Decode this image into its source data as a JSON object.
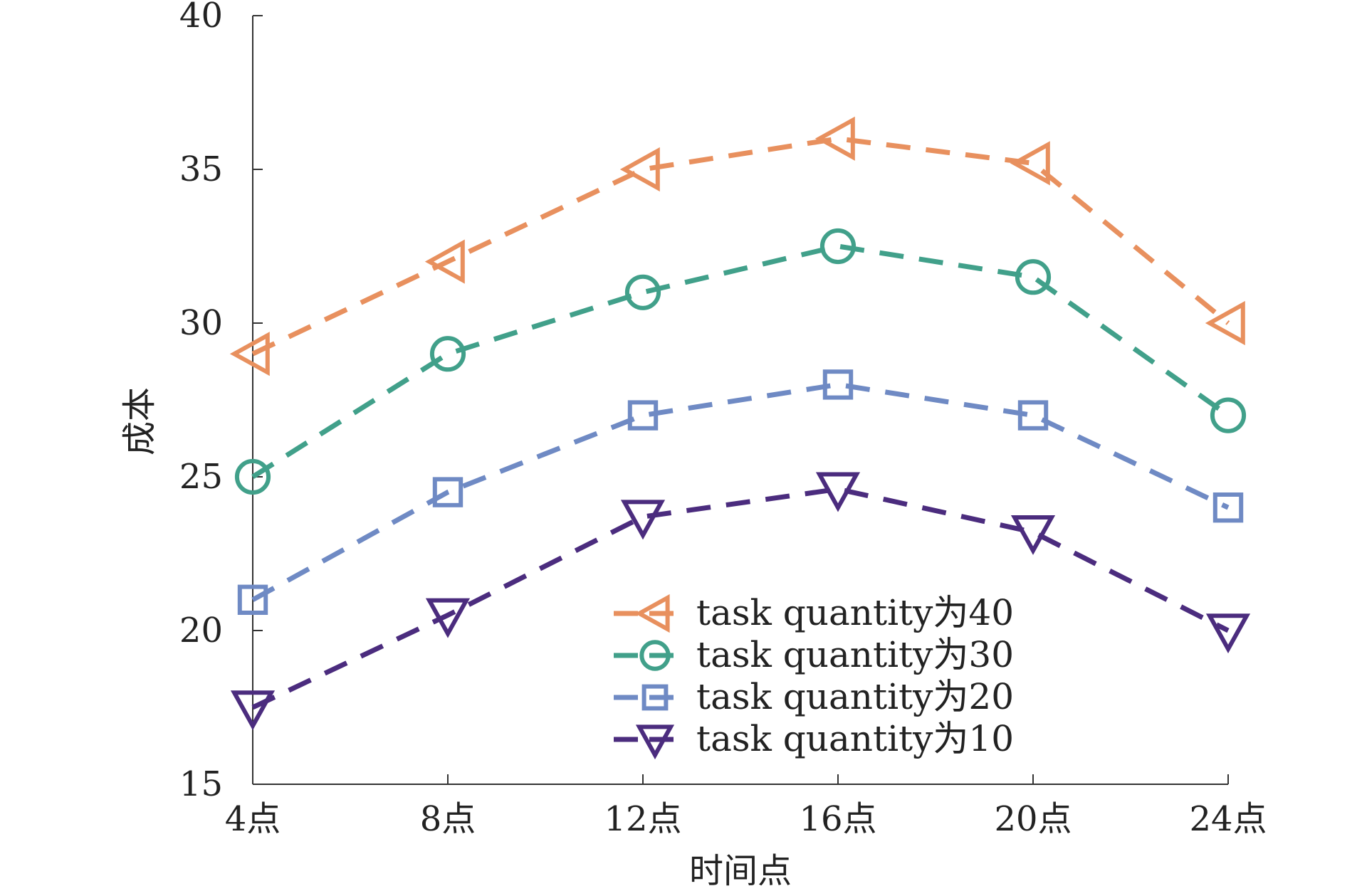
{
  "chart_data": {
    "type": "line",
    "title": "",
    "xlabel": "时间点",
    "ylabel": "成本",
    "categories": [
      "4点",
      "8点",
      "12点",
      "16点",
      "20点",
      "24点"
    ],
    "ylim": [
      15,
      40
    ],
    "yticks": [
      15,
      20,
      25,
      30,
      35,
      40
    ],
    "grid": false,
    "legend_position": "bottom-right",
    "series": [
      {
        "name": "task quantity为40",
        "marker": "triangle-left",
        "color": "#E8905E",
        "values": [
          29.0,
          32.0,
          35.0,
          36.0,
          35.2,
          30.0
        ]
      },
      {
        "name": "task quantity为30",
        "marker": "circle",
        "color": "#41A08A",
        "values": [
          25.0,
          29.0,
          31.0,
          32.5,
          31.5,
          27.0
        ]
      },
      {
        "name": "task quantity为20",
        "marker": "square",
        "color": "#6F8AC4",
        "values": [
          21.0,
          24.5,
          27.0,
          28.0,
          27.0,
          24.0
        ]
      },
      {
        "name": "task quantity为10",
        "marker": "triangle-down",
        "color": "#4B2C7E",
        "values": [
          17.5,
          20.5,
          23.7,
          24.6,
          23.2,
          20.0
        ]
      }
    ]
  }
}
